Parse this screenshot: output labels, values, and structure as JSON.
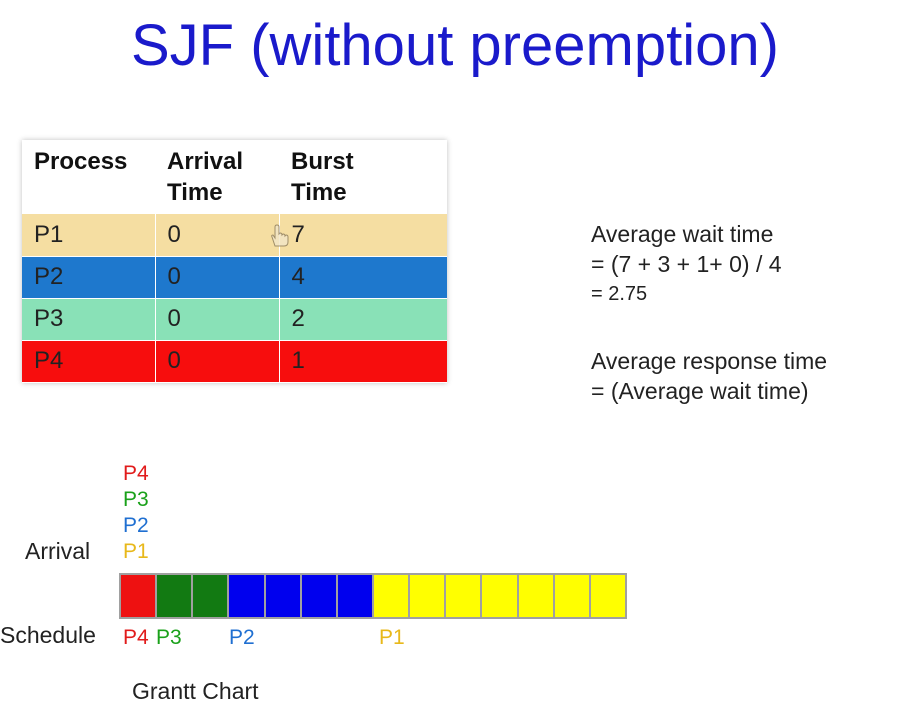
{
  "title": "SJF (without preemption)",
  "table": {
    "headers": [
      {
        "line1": "Process",
        "line2": ""
      },
      {
        "line1": "Arrival",
        "line2": "Time"
      },
      {
        "line1": "Burst",
        "line2": "Time"
      }
    ],
    "rows": [
      {
        "process": "P1",
        "arrival": "0",
        "burst": "7",
        "color": "#f5dea2"
      },
      {
        "process": "P2",
        "arrival": "0",
        "burst": "4",
        "color": "#1e78cd"
      },
      {
        "process": "P3",
        "arrival": "0",
        "burst": "2",
        "color": "#89e1b7"
      },
      {
        "process": "P4",
        "arrival": "0",
        "burst": "1",
        "color": "#f70d0d"
      }
    ]
  },
  "notes": {
    "wait_label": "Average wait time",
    "wait_formula": "= (7 + 3 + 1+ 0) / 4",
    "wait_result": "= 2.75",
    "response_label": "Average response time",
    "response_formula": "= (Average wait time)"
  },
  "gantt": {
    "arrival_label": "Arrival",
    "arrival_order": [
      "P4",
      "P3",
      "P2",
      "P1"
    ],
    "schedule_label": "Schedule",
    "schedule_labels": [
      "P4",
      "P3",
      "P2",
      "P1"
    ],
    "cells": [
      "#ee1111",
      "#127a12",
      "#127a12",
      "#0000ee",
      "#0000ee",
      "#0000ee",
      "#0000ee",
      "#ffff00",
      "#ffff00",
      "#ffff00",
      "#ffff00",
      "#ffff00",
      "#ffff00",
      "#ffff00"
    ],
    "caption": "Grantt Chart"
  }
}
